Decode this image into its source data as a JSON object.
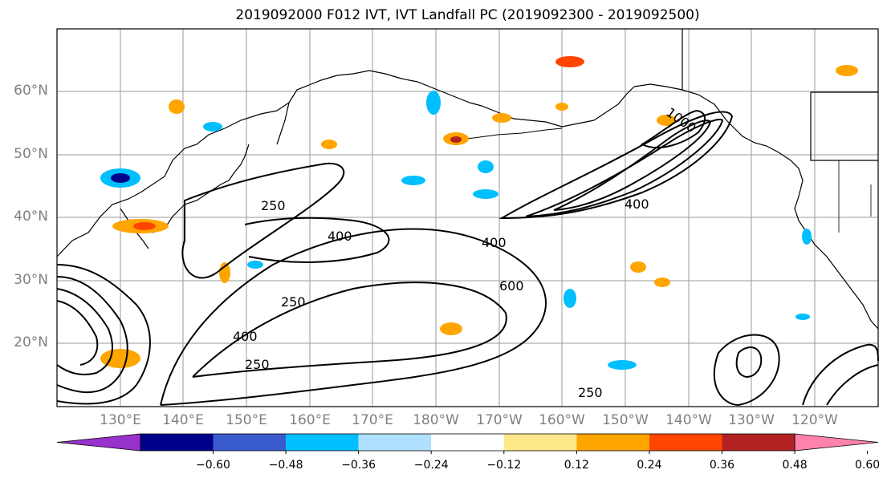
{
  "title": "2019092000 F012 IVT, IVT Landfall PC (2019092300 - 2019092500)",
  "lat_labels": [
    "60°N",
    "50°N",
    "40°N",
    "30°N",
    "20°N"
  ],
  "lon_labels": [
    "130°E",
    "140°E",
    "150°E",
    "160°E",
    "170°E",
    "180°W",
    "170°W",
    "160°W",
    "150°W",
    "140°W",
    "130°W",
    "120°W"
  ],
  "contour_labels": [
    "1000",
    "600",
    "400",
    "250"
  ],
  "colorbar": {
    "ticks": [
      "−0.60",
      "−0.48",
      "−0.36",
      "−0.24",
      "−0.12",
      "0.12",
      "0.24",
      "0.36",
      "0.48",
      "0.60"
    ],
    "colors": [
      "#9932cc",
      "#00008b",
      "#3a5bcd",
      "#00bfff",
      "#b0e0ff",
      "#ffffff",
      "#ffe88a",
      "#ffa500",
      "#ff4500",
      "#b22222",
      "#ff82ab"
    ]
  }
}
